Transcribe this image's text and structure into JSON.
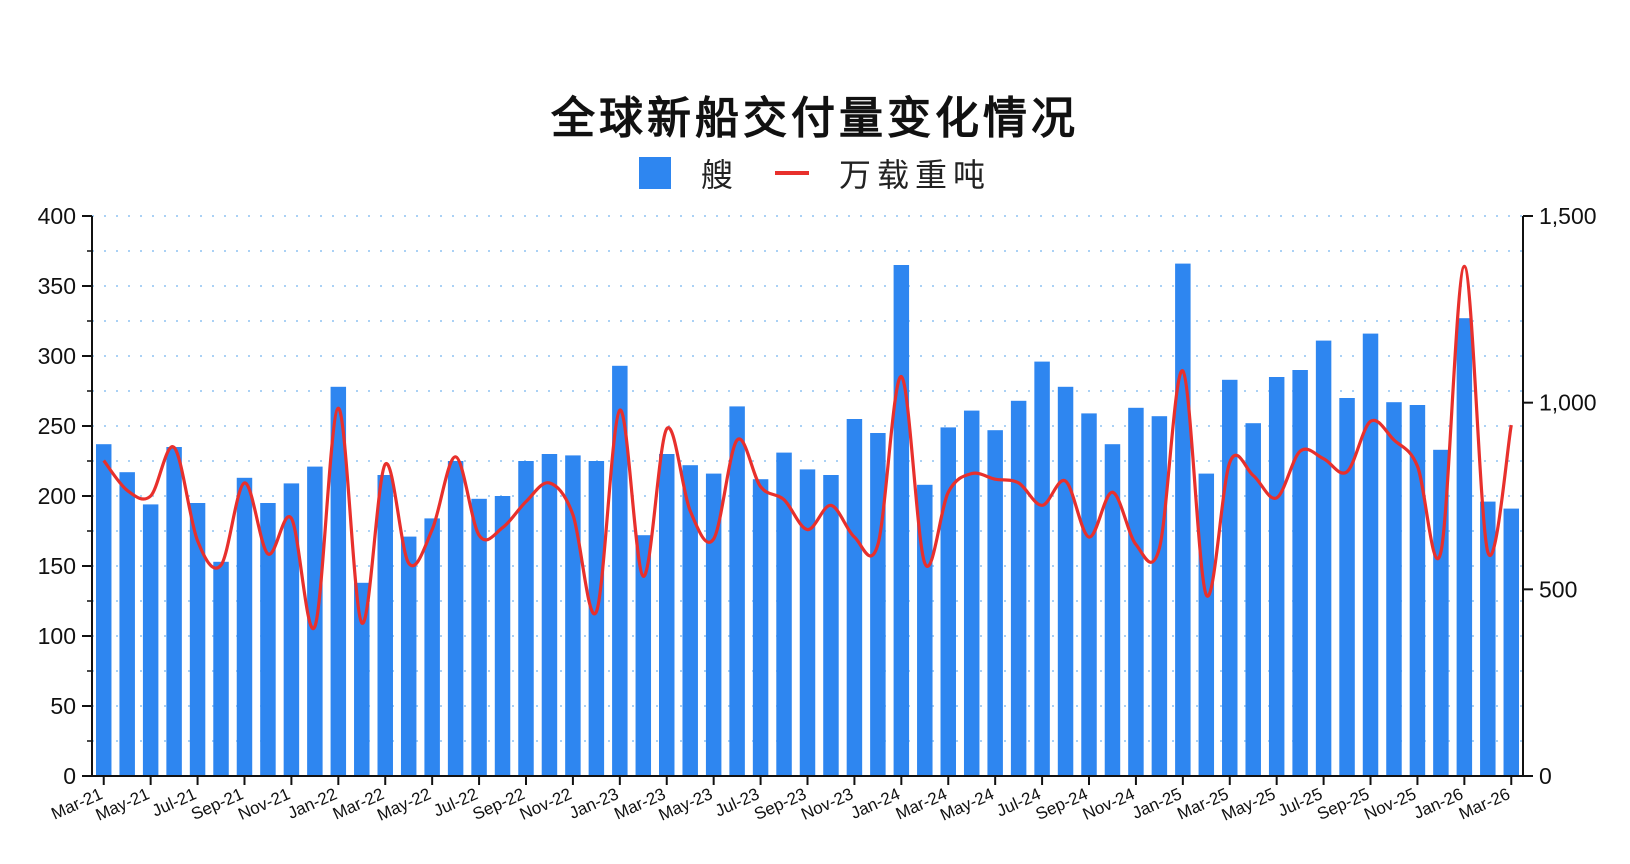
{
  "title": "全球新船交付量变化情况",
  "legend": [
    {
      "label": "艘",
      "type": "bar",
      "color": "#2e86f0"
    },
    {
      "label": "万载重吨",
      "type": "line",
      "color": "#e8302c"
    }
  ],
  "chart_data": {
    "type": "bar",
    "title": "全球新船交付量变化情况",
    "categories": [
      "Mar-21",
      "Apr-21",
      "May-21",
      "Jun-21",
      "Jul-21",
      "Aug-21",
      "Sep-21",
      "Oct-21",
      "Nov-21",
      "Dec-21",
      "Jan-22",
      "Feb-22",
      "Mar-22",
      "Apr-22",
      "May-22",
      "Jun-22",
      "Jul-22",
      "Aug-22",
      "Sep-22",
      "Oct-22",
      "Nov-22",
      "Dec-22",
      "Jan-23",
      "Feb-23",
      "Mar-23",
      "Apr-23",
      "May-23",
      "Jun-23",
      "Jul-23",
      "Aug-23",
      "Sep-23",
      "Oct-23",
      "Nov-23",
      "Dec-23",
      "Jan-24",
      "Feb-24",
      "Mar-24",
      "Apr-24",
      "May-24",
      "Jun-24",
      "Jul-24",
      "Aug-24",
      "Sep-24",
      "Oct-24",
      "Nov-24",
      "Dec-24",
      "Jan-25",
      "Feb-25",
      "Mar-25",
      "Apr-25",
      "May-25",
      "Jun-25",
      "Jul-25",
      "Aug-25",
      "Sep-25",
      "Oct-25",
      "Nov-25",
      "Dec-25",
      "Jan-26",
      "Feb-26",
      "Mar-26"
    ],
    "x_tick_labels": [
      "Mar-21",
      "May-21",
      "Jul-21",
      "Sep-21",
      "Nov-21",
      "Jan-22",
      "Mar-22",
      "May-22",
      "Jul-22",
      "Sep-22",
      "Nov-22",
      "Jan-23",
      "Mar-23",
      "May-23",
      "Jul-23",
      "Sep-23",
      "Nov-23",
      "Jan-24",
      "Mar-24",
      "May-24",
      "Jul-24",
      "Sep-24",
      "Nov-24",
      "Jan-25",
      "Mar-25",
      "May-25",
      "Jul-25",
      "Sep-25",
      "Nov-25",
      "Jan-26",
      "Mar-26"
    ],
    "series": [
      {
        "name": "艘",
        "type": "bar",
        "axis": "left",
        "color": "#2e86f0",
        "values": [
          237,
          217,
          194,
          235,
          195,
          153,
          213,
          195,
          209,
          221,
          278,
          138,
          215,
          171,
          184,
          225,
          198,
          200,
          225,
          230,
          229,
          225,
          293,
          172,
          230,
          222,
          216,
          264,
          212,
          231,
          219,
          215,
          255,
          245,
          365,
          208,
          249,
          261,
          247,
          268,
          296,
          278,
          259,
          237,
          263,
          257,
          366,
          216,
          283,
          252,
          285,
          290,
          311,
          270,
          316,
          267,
          265,
          233,
          327,
          196,
          191
        ]
      },
      {
        "name": "万载重吨",
        "type": "line",
        "axis": "right",
        "color": "#e8302c",
        "values": [
          845,
          765,
          750,
          880,
          630,
          565,
          785,
          595,
          690,
          400,
          985,
          410,
          835,
          570,
          660,
          855,
          645,
          665,
          735,
          785,
          700,
          440,
          980,
          535,
          930,
          710,
          635,
          900,
          775,
          740,
          660,
          725,
          640,
          620,
          1070,
          570,
          760,
          810,
          795,
          785,
          725,
          790,
          640,
          760,
          620,
          610,
          1085,
          485,
          840,
          805,
          745,
          870,
          850,
          815,
          950,
          900,
          830,
          600,
          1365,
          600,
          940
        ]
      }
    ],
    "ylim_left": [
      0,
      400
    ],
    "yticks_left": [
      "0",
      "50",
      "100",
      "150",
      "200",
      "250",
      "300",
      "350",
      "400"
    ],
    "ylim_right": [
      0,
      1500
    ],
    "yticks_right": [
      "0",
      "500",
      "1,000",
      "1,500"
    ],
    "grid": "horizontal dotted",
    "legend_position": "top-center"
  }
}
